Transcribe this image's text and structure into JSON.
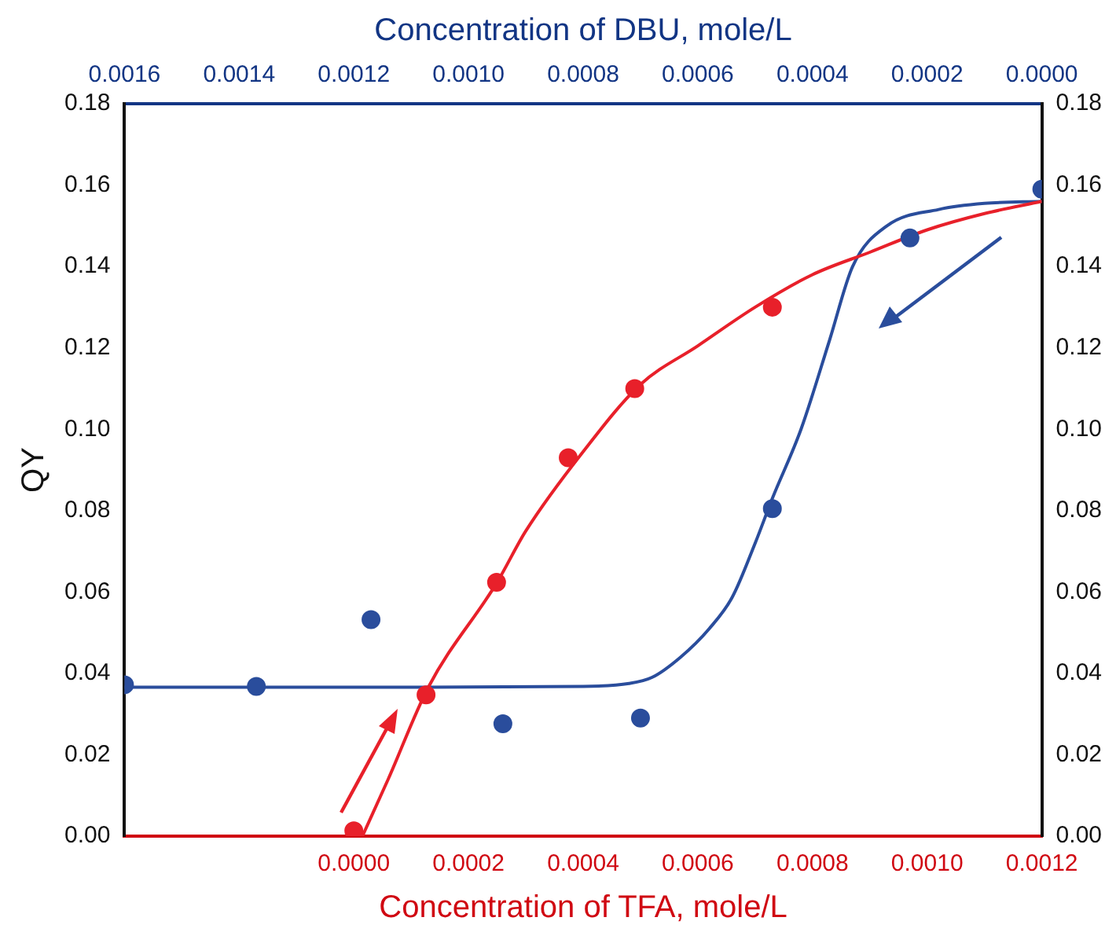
{
  "chart_data": {
    "type": "scatter",
    "xlabel": "Concentration of TFA, mole/L",
    "x2label": "Concentration of DBU, mole/L",
    "ylabel": "QY",
    "xlim": [
      -0.0004,
      0.0012
    ],
    "xticks": [
      {
        "value": 0,
        "label": "0.0000"
      },
      {
        "value": 0.0002,
        "label": "0.0002"
      },
      {
        "value": 0.0004,
        "label": "0.0004"
      },
      {
        "value": 0.0006,
        "label": "0.0006"
      },
      {
        "value": 0.0008,
        "label": "0.0008"
      },
      {
        "value": 0.001,
        "label": "0.0010"
      },
      {
        "value": 0.0012,
        "label": "0.0012"
      }
    ],
    "x2lim": [
      0.0016,
      0
    ],
    "x2ticks": [
      {
        "value": 0.0016,
        "label": "0.0016"
      },
      {
        "value": 0.0014,
        "label": "0.0014"
      },
      {
        "value": 0.0012,
        "label": "0.0012"
      },
      {
        "value": 0.001,
        "label": "0.0010"
      },
      {
        "value": 0.0008,
        "label": "0.0008"
      },
      {
        "value": 0.0006,
        "label": "0.0006"
      },
      {
        "value": 0.0004,
        "label": "0.0004"
      },
      {
        "value": 0.0002,
        "label": "0.0002"
      },
      {
        "value": 0,
        "label": "0.0000"
      }
    ],
    "ylim": [
      0,
      0.18
    ],
    "yticks": [
      {
        "value": 0,
        "label": "0.00"
      },
      0.02,
      0.04,
      0.06,
      0.08,
      {
        "value": 0.1,
        "label": "0.10"
      },
      0.12,
      0.14,
      0.16,
      0.18
    ],
    "y2lim": [
      0,
      0.18
    ],
    "y2ticks": [
      {
        "value": 0,
        "label": "0.00"
      },
      0.02,
      0.04,
      0.06,
      0.08,
      {
        "value": 0.1,
        "label": "0.10"
      },
      0.12,
      0.14,
      0.16,
      0.18
    ],
    "grid": false,
    "legend": false,
    "marker": "circle",
    "series": [
      {
        "type": "line",
        "marker": "none",
        "color": "#e8202a",
        "x": [
          1.5e-05,
          6e-05,
          0.00013,
          0.00025,
          0.0003,
          0.0004,
          0.0005,
          0.0006,
          0.0007,
          0.0008,
          0.0009,
          0.001,
          0.0011,
          0.0012
        ],
        "values": [
          0,
          0.014,
          0.0366,
          0.0624,
          0.075,
          0.0945,
          0.111,
          0.1205,
          0.13,
          0.138,
          0.1435,
          0.149,
          0.153,
          0.156
        ]
      },
      {
        "type": "line",
        "marker": "none",
        "axis": "x2",
        "color": "#2a4d9c",
        "x": [
          0.0016,
          0.0012,
          0.0008,
          0.00072,
          0.00068,
          0.00063,
          0.00058,
          0.00054,
          0.0005,
          0.00047,
          0.00042,
          0.00037,
          0.00033,
          0.00027,
          0.00018,
          0.0001,
          0
        ],
        "values": [
          0.0366,
          0.0366,
          0.0368,
          0.0375,
          0.039,
          0.044,
          0.051,
          0.0587,
          0.072,
          0.083,
          0.1,
          0.122,
          0.14,
          0.15,
          0.154,
          0.1555,
          0.156
        ]
      },
      {
        "type": "scatter",
        "color": "#e8202a",
        "x": [
          0,
          0.000126,
          0.000249,
          0.000374,
          0.00049,
          0.00073
        ],
        "values": [
          0.0013,
          0.0347,
          0.0624,
          0.093,
          0.11,
          0.13
        ]
      },
      {
        "type": "scatter",
        "axis": "x2",
        "color": "#2a4d9c",
        "x": [
          0.0016,
          0.00137,
          0.00117,
          0.00094,
          0.0007,
          0.00047,
          0.00023,
          0
        ],
        "values": [
          0.0372,
          0.0368,
          0.0532,
          0.0276,
          0.029,
          0.0805,
          0.147,
          0.159
        ]
      }
    ]
  }
}
